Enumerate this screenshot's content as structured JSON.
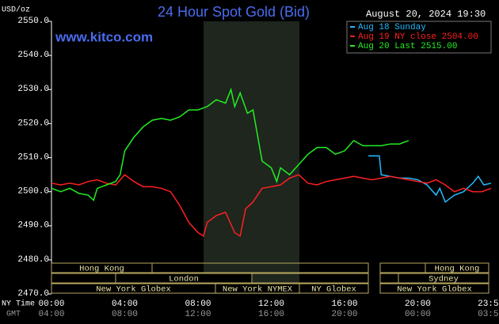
{
  "chart_data": {
    "type": "line",
    "title": "24 Hour Spot Gold (Bid)",
    "website": "www.kitco.com",
    "timestamp": "August 20, 2024 19:30",
    "y_axis_label": "USD/oz",
    "x_axis_label": "NY Time",
    "x2_axis_label": "GMT",
    "xlim": [
      0,
      24
    ],
    "ylim": [
      2470,
      2550
    ],
    "grid": false,
    "legend_position": "top-right",
    "yticks": [
      {
        "value": 2470,
        "label": "2470.0"
      },
      {
        "value": 2480,
        "label": "2480.0"
      },
      {
        "value": 2490,
        "label": "2490.0"
      },
      {
        "value": 2500,
        "label": "2500.0"
      },
      {
        "value": 2510,
        "label": "2510.0"
      },
      {
        "value": 2520,
        "label": "2520.0"
      },
      {
        "value": 2530,
        "label": "2530.0"
      },
      {
        "value": 2540,
        "label": "2540.0"
      },
      {
        "value": 2550,
        "label": "2550.0"
      }
    ],
    "xticks": [
      {
        "value": 0,
        "label": "00:00"
      },
      {
        "value": 4,
        "label": "04:00"
      },
      {
        "value": 8,
        "label": "08:00"
      },
      {
        "value": 12,
        "label": "12:00"
      },
      {
        "value": 16,
        "label": "16:00"
      },
      {
        "value": 20,
        "label": "20:00"
      },
      {
        "value": 23.983,
        "label": "23:59"
      }
    ],
    "x2ticks": [
      "04:00",
      "08:00",
      "12:00",
      "16:00",
      "20:00",
      "00:00",
      "03:59"
    ],
    "sessions": [
      "Hong Kong",
      "Hong Kong",
      "London",
      "Sydney",
      "New York Globex",
      "New York NYMEX",
      "NY Globex",
      "New York Globex"
    ],
    "series": [
      {
        "name": "Aug 18 Sunday",
        "color": "#22bbff",
        "x": [
          17.3,
          17.9,
          18.0,
          18.5,
          19,
          19.5,
          20,
          20.5,
          21,
          21.2,
          21.5,
          22,
          22.5,
          23,
          23.3,
          23.6,
          24
        ],
        "values": [
          2510.5,
          2510.5,
          2505,
          2504.5,
          2504,
          2504,
          2503.5,
          2502,
          2499,
          2501,
          2497,
          2499,
          2500,
          2502.5,
          2504.5,
          2502,
          2502.5
        ]
      },
      {
        "name": "Aug 19 NY close 2504.00",
        "color": "#ff2020",
        "x": [
          0,
          0.5,
          1,
          1.5,
          2,
          2.5,
          3,
          3.5,
          4,
          4.5,
          5,
          5.5,
          6,
          6.5,
          7,
          7.5,
          8,
          8.3,
          8.5,
          9,
          9.5,
          10,
          10.3,
          10.6,
          11,
          11.5,
          12,
          12.5,
          13,
          13.5,
          14,
          14.5,
          15,
          15.5,
          16,
          16.5,
          17,
          17.5,
          18,
          18.5,
          19,
          19.5,
          20,
          20.5,
          21,
          21.5,
          22,
          22.5,
          23,
          23.5,
          24
        ],
        "values": [
          2502.5,
          2502,
          2502.5,
          2502,
          2503,
          2503.5,
          2502.5,
          2502,
          2505,
          2503,
          2501.5,
          2501.5,
          2501,
          2500,
          2496,
          2491,
          2488,
          2487,
          2491,
          2493,
          2494,
          2488,
          2487,
          2495,
          2497,
          2501,
          2501.5,
          2502,
          2504,
          2505,
          2502.5,
          2502,
          2503,
          2503.5,
          2504,
          2504.5,
          2504,
          2503.5,
          2504,
          2504.5,
          2504,
          2503.5,
          2503,
          2502.5,
          2503.5,
          2502,
          2500,
          2501,
          2500,
          2500,
          2501
        ]
      },
      {
        "name": "Aug 20 Last 2515.00",
        "color": "#22ee22",
        "x": [
          0,
          0.5,
          1,
          1.5,
          2,
          2.3,
          2.5,
          3,
          3.5,
          3.75,
          4,
          4.5,
          5,
          5.5,
          6,
          6.5,
          7,
          7.5,
          8,
          8.5,
          9,
          9.5,
          9.8,
          10,
          10.3,
          10.7,
          11,
          11.3,
          11.5,
          12,
          12.3,
          12.5,
          13,
          13.5,
          14,
          14.5,
          15,
          15.5,
          16,
          16.5,
          17,
          17.5,
          18,
          18.5,
          19,
          19.5
        ],
        "values": [
          2501,
          2500,
          2501,
          2499.5,
          2499,
          2497.5,
          2501,
          2502,
          2503,
          2505,
          2512,
          2516,
          2519,
          2521,
          2521.5,
          2521,
          2522,
          2524,
          2524,
          2525,
          2527,
          2526,
          2530,
          2525,
          2529,
          2523,
          2524,
          2515,
          2509,
          2507,
          2503,
          2507,
          2505,
          2508,
          2511,
          2513,
          2513,
          2511,
          2512,
          2515,
          2513.5,
          2513.5,
          2513.5,
          2514,
          2514,
          2515
        ]
      }
    ]
  }
}
